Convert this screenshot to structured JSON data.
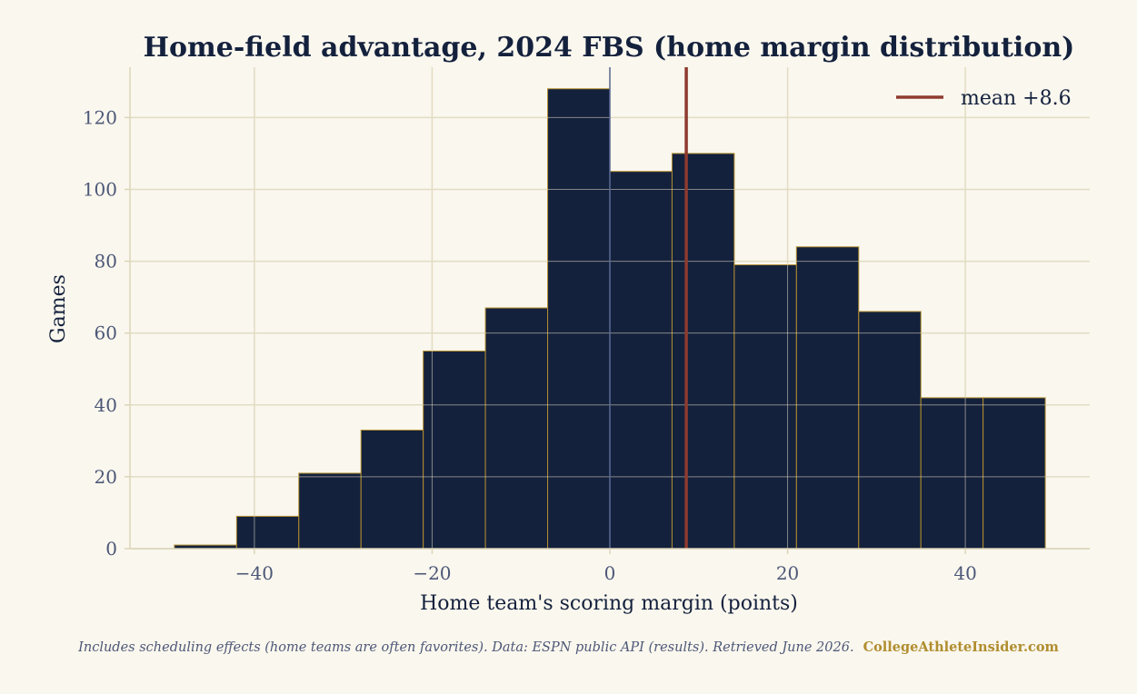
{
  "chart_data": {
    "type": "bar",
    "title": "Home-field advantage, 2024 FBS (home margin distribution)",
    "xlabel": "Home team's scoring margin (points)",
    "ylabel": "Games",
    "bin_edges": [
      -49,
      -42,
      -35,
      -28,
      -21,
      -14,
      -7,
      0,
      7,
      14,
      21,
      28,
      35,
      42,
      49
    ],
    "values": [
      1,
      9,
      21,
      33,
      55,
      67,
      128,
      105,
      110,
      79,
      84,
      66,
      42,
      42
    ],
    "xlim": [
      -54,
      54
    ],
    "ylim": [
      0,
      134
    ],
    "x_ticks": [
      -40,
      -20,
      0,
      20,
      40
    ],
    "x_tick_labels": [
      "−40",
      "−20",
      "0",
      "20",
      "40"
    ],
    "y_ticks": [
      0,
      20,
      40,
      60,
      80,
      100,
      120
    ],
    "y_tick_labels": [
      "0",
      "20",
      "40",
      "60",
      "80",
      "100",
      "120"
    ],
    "zero_line": 0,
    "mean": 8.6,
    "legend": {
      "position": "top-right",
      "entries": [
        "mean +8.6"
      ]
    },
    "grid": true,
    "colors": {
      "bar": "#14213d",
      "bar_edge": "#b08d2f",
      "mean_line": "#8e3b2f",
      "zero_line": "#5a6a94",
      "grid": "#e2dcc3",
      "axis": "#dcd5b8",
      "tick_text": "#4d5878",
      "title": "#14213d",
      "background": "#faf7ee"
    }
  },
  "footer": {
    "note": "Includes scheduling effects (home teams are often favorites).  Data: ESPN public API (results). Retrieved June 2026.",
    "brand": "CollegeAthleteInsider.com"
  }
}
